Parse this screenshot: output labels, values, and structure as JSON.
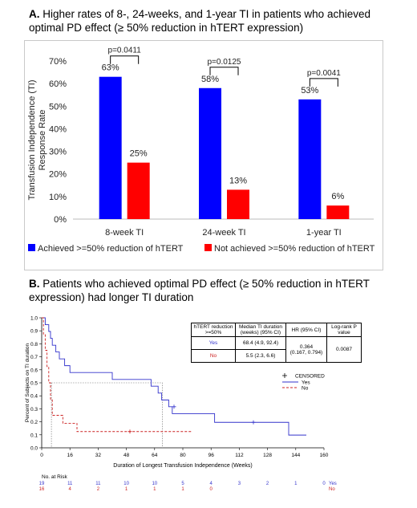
{
  "panel_a": {
    "heading_letter": "A.",
    "heading_text": "Higher rates of 8-, 24-weeks, and 1-year TI in patients who achieved optimal PD effect (≥ 50% reduction in hTERT expression)"
  },
  "panel_b": {
    "heading_letter": "B.",
    "heading_text": "Patients who achieved optimal PD effect (≥ 50% reduction in hTERT expression) had longer TI duration"
  },
  "colors": {
    "blue": "#0000ff",
    "red": "#ff0000",
    "km_blue": "#3333cc",
    "km_red": "#cc2222"
  },
  "chart_data": [
    {
      "type": "bar",
      "title": "",
      "ylabel": "Transfusion Independence (TI) Response Rate",
      "xlabel": "",
      "categories": [
        "8-week TI",
        "24-week TI",
        "1-year TI"
      ],
      "ylim": [
        0,
        70
      ],
      "yticks": [
        0,
        10,
        20,
        30,
        40,
        50,
        60,
        70
      ],
      "ytick_labels": [
        "0%",
        "10%",
        "20%",
        "30%",
        "40%",
        "50%",
        "60%",
        "70%"
      ],
      "series": [
        {
          "name": "Achieved >=50% reduction of hTERT",
          "values": [
            63,
            58,
            53
          ],
          "labels": [
            "63%",
            "58%",
            "53%"
          ]
        },
        {
          "name": "Not achieved >=50% reduction of hTERT",
          "values": [
            25,
            13,
            6
          ],
          "labels": [
            "25%",
            "13%",
            "6%"
          ]
        }
      ],
      "pvalues": [
        "p=0.0411",
        "p=0.0125",
        "p=0.0041"
      ],
      "grid": false,
      "legend": "bottom"
    },
    {
      "type": "line",
      "title": "",
      "xlabel": "Duration of Longest Transfusion Independence (Weeks)",
      "ylabel": "Percent of Subjects on TI duration",
      "xlim": [
        0,
        160
      ],
      "ylim": [
        0,
        1
      ],
      "xticks": [
        0,
        16,
        32,
        48,
        64,
        80,
        96,
        112,
        128,
        144,
        160
      ],
      "yticks": [
        0.0,
        0.1,
        0.2,
        0.3,
        0.4,
        0.5,
        0.6,
        0.7,
        0.8,
        0.9,
        1.0
      ],
      "ytick_labels": [
        "0.0",
        "0.1",
        "0.2",
        "0.3",
        "0.4",
        "0.5",
        "0.6",
        "0.7",
        "0.8",
        "0.9",
        "1.0"
      ],
      "series": [
        {
          "name": "Yes",
          "style": "solid",
          "x": [
            0,
            2,
            2,
            4,
            4,
            5,
            5,
            6,
            6,
            8,
            8,
            10,
            10,
            13,
            13,
            16,
            16,
            40,
            40,
            62,
            62,
            66,
            66,
            68,
            68,
            72,
            72,
            74,
            74,
            98,
            98,
            140,
            140,
            150
          ],
          "y": [
            1.0,
            1.0,
            0.947,
            0.947,
            0.895,
            0.895,
            0.842,
            0.842,
            0.789,
            0.789,
            0.737,
            0.737,
            0.684,
            0.684,
            0.632,
            0.632,
            0.579,
            0.579,
            0.526,
            0.526,
            0.474,
            0.474,
            0.421,
            0.421,
            0.368,
            0.368,
            0.316,
            0.316,
            0.263,
            0.263,
            0.196,
            0.196,
            0.098,
            0.098
          ]
        },
        {
          "name": "No",
          "style": "dashed",
          "x": [
            0,
            1,
            1,
            2,
            2,
            3,
            3,
            4,
            4,
            5,
            5,
            6,
            6,
            12,
            12,
            20,
            20,
            85
          ],
          "y": [
            1.0,
            1.0,
            0.875,
            0.875,
            0.75,
            0.75,
            0.625,
            0.625,
            0.5,
            0.5,
            0.375,
            0.375,
            0.25,
            0.25,
            0.188,
            0.188,
            0.125,
            0.125
          ]
        }
      ],
      "censored": {
        "legend_label": "CENSORED",
        "yes_x": [
          75,
          120
        ],
        "yes_y": [
          0.316,
          0.196
        ],
        "no_x": [
          50
        ],
        "no_y": [
          0.125
        ]
      },
      "median_lines": [
        {
          "series": "Yes",
          "x": 68.4
        },
        {
          "series": "No",
          "x": 5.5
        }
      ],
      "legend": [
        "Yes",
        "No"
      ],
      "legend_position": "right",
      "grid": false,
      "at_risk": {
        "label": "No. at Risk",
        "times": [
          0,
          16,
          32,
          48,
          64,
          80,
          96,
          112,
          128,
          144,
          160
        ],
        "yes": [
          19,
          11,
          11,
          10,
          10,
          5,
          4,
          3,
          2,
          1,
          0
        ],
        "no": [
          16,
          4,
          2,
          1,
          1,
          1,
          0,
          null,
          null,
          null,
          null
        ],
        "yes_label": "Yes",
        "no_label": "No"
      },
      "table": {
        "headers": [
          "hTERT reduction >=50%",
          "Median TI duration (weeks) (95% CI)",
          "HR (95% CI)",
          "Log-rank P value"
        ],
        "rows": [
          {
            "group": "Yes",
            "median": "68.4 (4.9, 92.4)"
          },
          {
            "group": "No",
            "median": "5.5 (2.3, 6.6)"
          }
        ],
        "hr": "0.364",
        "hr_ci": "(0.167, 0.794)",
        "p": "0.0087"
      }
    }
  ]
}
